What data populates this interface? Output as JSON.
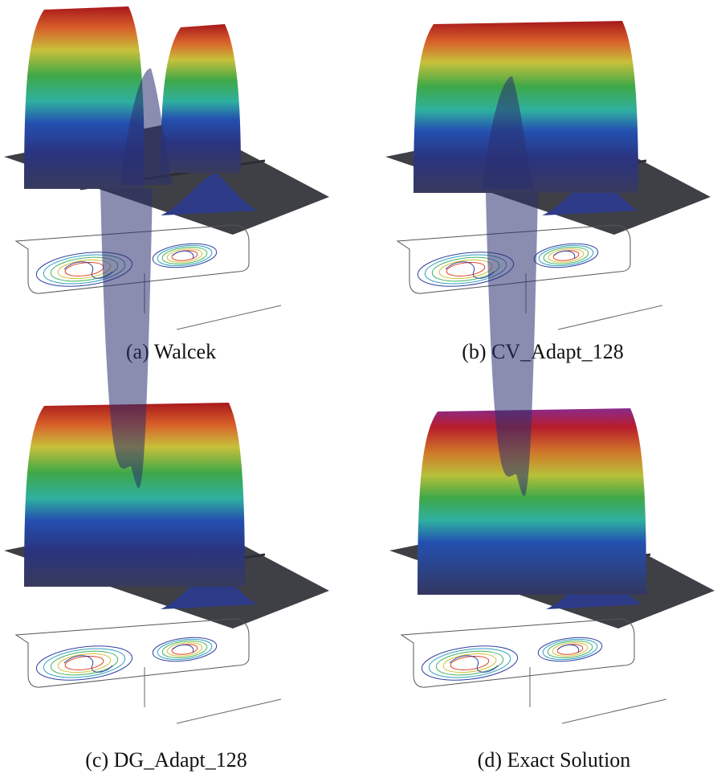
{
  "figure": {
    "panels": [
      {
        "caption": "(a) Walcek"
      },
      {
        "caption": "(b) CV_Adapt_128"
      },
      {
        "caption": "(c) DG_Adapt_128"
      },
      {
        "caption": "(d) Exact Solution"
      }
    ]
  }
}
